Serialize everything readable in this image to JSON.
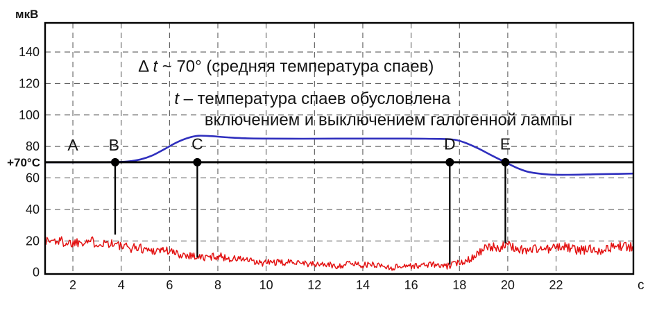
{
  "figure": {
    "background": "#ffffff"
  },
  "chart_data": {
    "type": "line",
    "title": "",
    "y_unit_label": "мкВ",
    "x_unit_label": "с",
    "xlim": [
      0.85,
      25.2
    ],
    "ylim": [
      -1,
      158.5
    ],
    "x_ticks": [
      2,
      4,
      6,
      8,
      10,
      12,
      14,
      16,
      18,
      20,
      22
    ],
    "y_ticks": [
      0,
      20,
      40,
      60,
      80,
      100,
      120,
      140
    ],
    "grid": {
      "style": "dashed",
      "color": "#4a4a4a"
    },
    "reference_line": {
      "label": "+70°C",
      "y": 70,
      "color": "#000000"
    },
    "noise_seed": 1337,
    "series": [
      {
        "name": "junction-temperature-smoothed",
        "color": "#2f2fbe",
        "width": 2.6,
        "points": [
          [
            0.85,
            70
          ],
          [
            2,
            70
          ],
          [
            3,
            70
          ],
          [
            3.8,
            70.1
          ],
          [
            4.3,
            70.5
          ],
          [
            4.8,
            71.8
          ],
          [
            5.3,
            74.4
          ],
          [
            5.8,
            78.4
          ],
          [
            6.3,
            82.6
          ],
          [
            6.8,
            85.6
          ],
          [
            7.2,
            86.8
          ],
          [
            7.7,
            86.6
          ],
          [
            8.4,
            85.8
          ],
          [
            9.2,
            85.2
          ],
          [
            10,
            85
          ],
          [
            11.5,
            84.9
          ],
          [
            13,
            85
          ],
          [
            14.5,
            85
          ],
          [
            15.8,
            85
          ],
          [
            16.6,
            84.9
          ],
          [
            17.5,
            84.7
          ],
          [
            17.9,
            84
          ],
          [
            18.3,
            82
          ],
          [
            18.8,
            78.6
          ],
          [
            19.3,
            74.6
          ],
          [
            19.9,
            70
          ],
          [
            20.4,
            66.3
          ],
          [
            20.9,
            63.7
          ],
          [
            21.7,
            62.2
          ],
          [
            22.5,
            62
          ],
          [
            23.5,
            62.3
          ],
          [
            24.5,
            62.6
          ],
          [
            25.2,
            62.8
          ]
        ]
      },
      {
        "name": "thermo-emf-noisy",
        "color": "#e31212",
        "width": 1.5,
        "noise_amplitude_base": 1.5,
        "noise_amplitude_scale": 0.1,
        "baseline": [
          [
            0.85,
            20.5
          ],
          [
            1.6,
            20
          ],
          [
            2.4,
            19.5
          ],
          [
            3.2,
            18.5
          ],
          [
            3.9,
            17.5
          ],
          [
            4.6,
            16
          ],
          [
            5.3,
            14
          ],
          [
            6.1,
            12.5
          ],
          [
            6.9,
            11
          ],
          [
            7.7,
            10
          ],
          [
            8.5,
            8.5
          ],
          [
            9.3,
            7.5
          ],
          [
            10.1,
            6.5
          ],
          [
            11,
            6
          ],
          [
            12,
            5.5
          ],
          [
            13,
            5
          ],
          [
            14,
            4.5
          ],
          [
            15,
            4.3
          ],
          [
            15.8,
            4.2
          ],
          [
            16.6,
            4
          ],
          [
            17.4,
            4.2
          ],
          [
            17.9,
            6
          ],
          [
            18.4,
            9.5
          ],
          [
            18.9,
            13
          ],
          [
            19.4,
            15.5
          ],
          [
            19.9,
            16.5
          ],
          [
            20.6,
            15.5
          ],
          [
            21.4,
            14.8
          ],
          [
            22.2,
            15.2
          ],
          [
            23,
            14.8
          ],
          [
            23.8,
            15.2
          ],
          [
            24.6,
            15.8
          ],
          [
            25.2,
            16
          ]
        ]
      }
    ],
    "markers": [
      {
        "label": "B",
        "x": 3.75,
        "y": 70,
        "dropline_to": 24
      },
      {
        "label": "C",
        "x": 7.15,
        "y": 70,
        "dropline_to": 9.5
      },
      {
        "label": "D",
        "x": 17.6,
        "y": 70,
        "dropline_to": 5
      },
      {
        "label": "E",
        "x": 19.9,
        "y": 70,
        "dropline_to": 18.5
      }
    ],
    "point_labels": [
      {
        "label": "A",
        "x": 2.0,
        "y": 77.5
      },
      {
        "label": "B",
        "x": 3.7,
        "y": 77.5
      },
      {
        "label": "C",
        "x": 7.15,
        "y": 78
      },
      {
        "label": "D",
        "x": 17.6,
        "y": 78
      },
      {
        "label": "E",
        "x": 19.9,
        "y": 78
      }
    ],
    "annotations": [
      {
        "x": 4.7,
        "y": 127.5,
        "size": 24,
        "parts": [
          {
            "t": "Δ ",
            "i": false
          },
          {
            "t": "t",
            "i": true
          },
          {
            "t": " ~ 70° (средняя температура спаев)",
            "i": false
          }
        ]
      },
      {
        "x": 6.2,
        "y": 107,
        "size": 24,
        "parts": [
          {
            "t": "t",
            "i": true
          },
          {
            "t": " –  температура спаев обусловлена",
            "i": false
          }
        ]
      },
      {
        "x": 7.45,
        "y": 93.5,
        "size": 24,
        "parts": [
          {
            "t": "включением и выключением галогенной лампы",
            "i": false
          }
        ]
      }
    ]
  }
}
